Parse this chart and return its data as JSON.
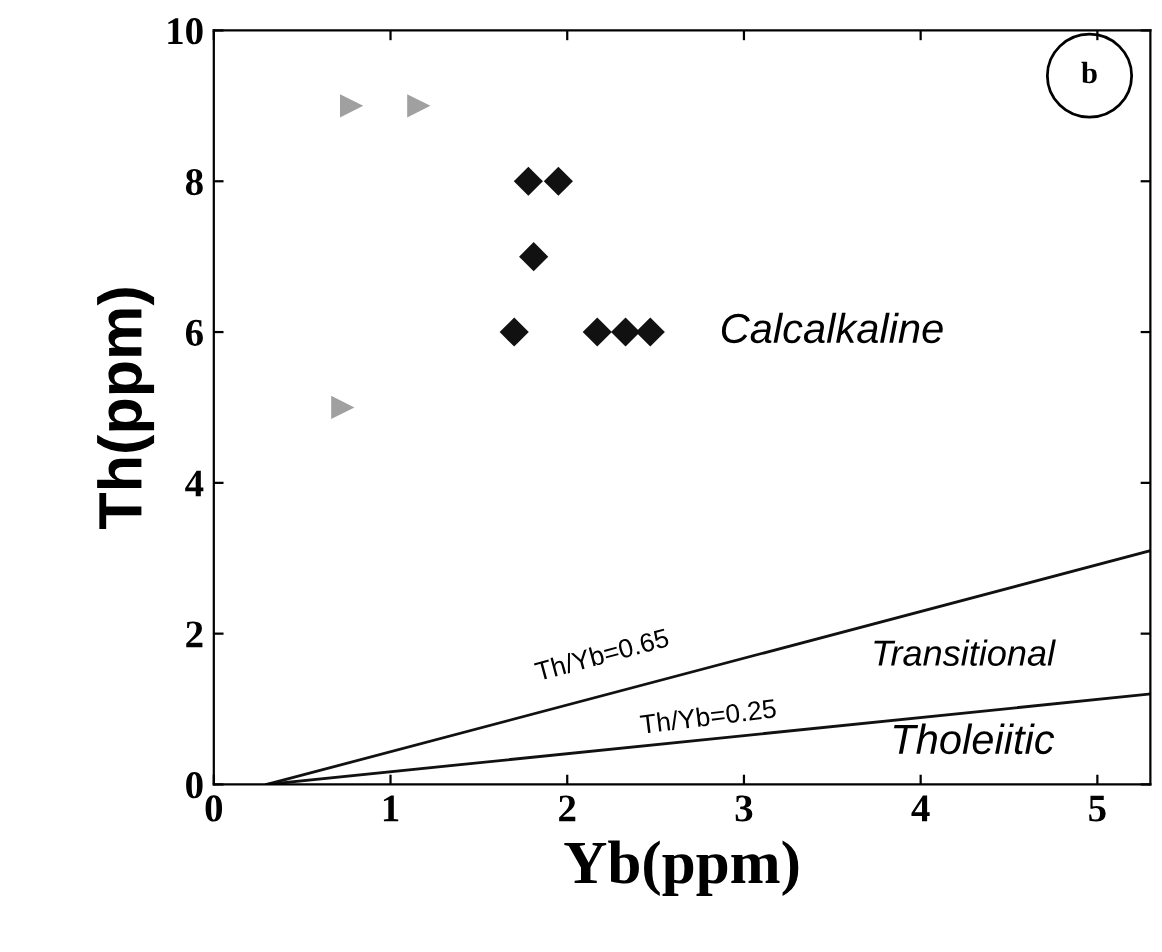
{
  "chart_data": {
    "type": "scatter",
    "xlabel": "Yb(ppm)",
    "ylabel": "Th(ppm)",
    "xlim": [
      0,
      5.3
    ],
    "ylim": [
      0,
      10
    ],
    "xticks": [
      0,
      1,
      2,
      3,
      4,
      5
    ],
    "yticks": [
      0,
      2,
      4,
      6,
      8,
      10
    ],
    "grid": false,
    "series": [
      {
        "marker": "triangle",
        "color": "#a0a0a0",
        "x": [
          0.78,
          1.16,
          0.73
        ],
        "values": [
          9,
          9,
          5
        ]
      },
      {
        "marker": "diamond",
        "color": "#111111",
        "x": [
          1.7,
          1.78,
          1.95,
          1.81,
          2.17,
          2.33,
          2.47
        ],
        "values": [
          6,
          8,
          8,
          7,
          6,
          6,
          6
        ]
      },
      {
        "type": "line",
        "marker": "none",
        "color": "#111111",
        "x": [
          0.3,
          5.3
        ],
        "values": [
          0,
          3.1
        ]
      },
      {
        "type": "line",
        "marker": "none",
        "color": "#111111",
        "x": [
          0.3,
          5.3
        ],
        "values": [
          0,
          1.2
        ]
      }
    ],
    "annotations": [
      "b",
      "Calcalkaline",
      {
        "text": "Th/Yb=0.65",
        "x": 2.2,
        "y": 1.3
      },
      {
        "text": "Th/Yb=0.25",
        "x": 2.8,
        "y": 0.6
      },
      "Transitional",
      "Tholeiitic"
    ]
  }
}
